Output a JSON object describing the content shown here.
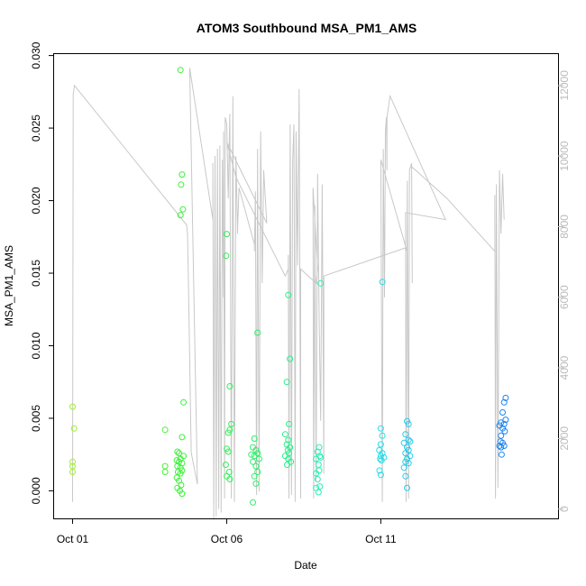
{
  "chart_data": {
    "type": "scatter",
    "title": "ATOM3 Southbound MSA_PM1_AMS",
    "xlabel": "Date",
    "ylabel": "MSA_PM1_AMS",
    "xlim": [
      -0.6,
      15.75
    ],
    "ylim": [
      -0.0019,
      0.0301
    ],
    "y2lim": [
      -265,
      12890
    ],
    "xticks": [
      {
        "value": 0,
        "label": "Oct 01"
      },
      {
        "value": 5,
        "label": "Oct 06"
      },
      {
        "value": 10,
        "label": "Oct 11"
      }
    ],
    "yticks": [
      {
        "value": 0.0,
        "label": "0.000"
      },
      {
        "value": 0.005,
        "label": "0.005"
      },
      {
        "value": 0.01,
        "label": "0.010"
      },
      {
        "value": 0.015,
        "label": "0.015"
      },
      {
        "value": 0.02,
        "label": "0.020"
      },
      {
        "value": 0.025,
        "label": "0.025"
      },
      {
        "value": 0.03,
        "label": "0.030"
      }
    ],
    "y2ticks": [
      {
        "value": 0,
        "label": "0"
      },
      {
        "value": 2000,
        "label": "2000"
      },
      {
        "value": 4000,
        "label": "4000"
      },
      {
        "value": 6000,
        "label": "6000"
      },
      {
        "value": 8000,
        "label": "8000"
      },
      {
        "value": 10000,
        "label": "10000"
      },
      {
        "value": 12000,
        "label": "12000"
      }
    ],
    "secondary_line": {
      "name": "altitude",
      "color": "#c8c8c8",
      "points": [
        [
          0.0,
          200
        ],
        [
          0.02,
          11750
        ],
        [
          0.06,
          12000
        ],
        [
          3.7,
          8050
        ],
        [
          3.73,
          7800
        ],
        [
          3.75,
          6900
        ],
        [
          3.85,
          1600
        ],
        [
          4.05,
          700
        ],
        [
          3.8,
          12500
        ],
        [
          4.55,
          8200
        ],
        [
          4.55,
          9800
        ],
        [
          4.58,
          -300
        ],
        [
          4.62,
          10000
        ],
        [
          4.66,
          -200
        ],
        [
          4.7,
          10200
        ],
        [
          4.74,
          0
        ],
        [
          4.78,
          10300
        ],
        [
          4.82,
          -100
        ],
        [
          4.86,
          9900
        ],
        [
          4.9,
          6000
        ],
        [
          4.9,
          10700
        ],
        [
          4.93,
          300
        ],
        [
          4.95,
          11100
        ],
        [
          5.0,
          10900
        ],
        [
          5.05,
          8800
        ],
        [
          5.1,
          11200
        ],
        [
          5.15,
          300
        ],
        [
          5.2,
          11700
        ],
        [
          5.25,
          200
        ],
        [
          5.3,
          10000
        ],
        [
          5.35,
          8000
        ],
        [
          5.35,
          7800
        ],
        [
          5.4,
          9100
        ],
        [
          5.9,
          7500
        ],
        [
          5.9,
          7300
        ],
        [
          5.93,
          9000
        ],
        [
          5.97,
          400
        ],
        [
          6.0,
          10200
        ],
        [
          6.05,
          500
        ],
        [
          6.1,
          10700
        ],
        [
          6.15,
          6400
        ],
        [
          6.2,
          9600
        ],
        [
          6.3,
          8100
        ],
        [
          5.0,
          10400
        ],
        [
          5.3,
          9400
        ],
        [
          6.9,
          6600
        ],
        [
          7.0,
          6800
        ],
        [
          7.0,
          7200
        ],
        [
          7.02,
          300
        ],
        [
          7.06,
          10900
        ],
        [
          7.1,
          400
        ],
        [
          7.14,
          9800
        ],
        [
          7.18,
          10900
        ],
        [
          7.22,
          200
        ],
        [
          7.25,
          10700
        ],
        [
          7.3,
          6900
        ],
        [
          7.35,
          11900
        ],
        [
          7.4,
          300
        ],
        [
          7.4,
          6800
        ],
        [
          7.9,
          6400
        ],
        [
          7.95,
          6800
        ],
        [
          7.8,
          9100
        ],
        [
          7.82,
          300
        ],
        [
          7.86,
          8600
        ],
        [
          7.9,
          800
        ],
        [
          7.95,
          9500
        ],
        [
          8.0,
          5400
        ],
        [
          8.05,
          2500
        ],
        [
          8.1,
          9200
        ],
        [
          8.15,
          1000
        ],
        [
          8.15,
          6600
        ],
        [
          10.8,
          7400
        ],
        [
          10.85,
          7300
        ],
        [
          10.0,
          9900
        ],
        [
          10.05,
          200
        ],
        [
          10.08,
          10200
        ],
        [
          10.12,
          6000
        ],
        [
          10.15,
          10700
        ],
        [
          10.18,
          11100
        ],
        [
          10.2,
          9600
        ],
        [
          10.2,
          11100
        ],
        [
          10.3,
          11700
        ],
        [
          12.1,
          8200
        ],
        [
          10.8,
          8400
        ],
        [
          10.82,
          200
        ],
        [
          10.86,
          9300
        ],
        [
          10.9,
          300
        ],
        [
          10.93,
          9600
        ],
        [
          11.0,
          9800
        ],
        [
          11.02,
          6400
        ],
        [
          11.0,
          9700
        ],
        [
          12.15,
          8800
        ],
        [
          13.7,
          7300
        ],
        [
          13.7,
          8900
        ],
        [
          13.72,
          300
        ],
        [
          13.75,
          9200
        ],
        [
          13.8,
          600
        ],
        [
          13.85,
          9600
        ],
        [
          13.9,
          7800
        ],
        [
          13.95,
          9500
        ],
        [
          14.0,
          8200
        ]
      ]
    },
    "series": [
      {
        "name": "MSA_PM1_AMS",
        "points": [
          [
            0.0,
            0.0058
          ],
          [
            0.05,
            0.0043
          ],
          [
            0.0,
            0.002
          ],
          [
            0.0,
            0.0017
          ],
          [
            0.0,
            0.0013
          ],
          [
            3.0,
            0.0042
          ],
          [
            3.0,
            0.0017
          ],
          [
            3.0,
            0.0013
          ],
          [
            3.5,
            0.029
          ],
          [
            3.55,
            0.0218
          ],
          [
            3.52,
            0.0211
          ],
          [
            3.58,
            0.0194
          ],
          [
            3.5,
            0.019
          ],
          [
            3.6,
            0.0061
          ],
          [
            3.55,
            0.0037
          ],
          [
            3.4,
            0.0027
          ],
          [
            3.45,
            0.0026
          ],
          [
            3.5,
            0.0022
          ],
          [
            3.6,
            0.0024
          ],
          [
            3.38,
            0.0021
          ],
          [
            3.45,
            0.002
          ],
          [
            3.55,
            0.0019
          ],
          [
            3.4,
            0.0017
          ],
          [
            3.5,
            0.0016
          ],
          [
            3.55,
            0.0014
          ],
          [
            3.42,
            0.0013
          ],
          [
            3.5,
            0.0012
          ],
          [
            3.38,
            0.0009
          ],
          [
            3.45,
            0.0007
          ],
          [
            3.52,
            0.0004
          ],
          [
            3.4,
            0.0002
          ],
          [
            3.48,
            0.0
          ],
          [
            3.55,
            -0.0002
          ],
          [
            5.0,
            0.0177
          ],
          [
            4.98,
            0.0162
          ],
          [
            5.1,
            0.0072
          ],
          [
            5.15,
            0.0046
          ],
          [
            5.1,
            0.0042
          ],
          [
            5.05,
            0.004
          ],
          [
            5.0,
            0.0029
          ],
          [
            5.05,
            0.0027
          ],
          [
            4.97,
            0.0018
          ],
          [
            5.08,
            0.0013
          ],
          [
            5.0,
            0.001
          ],
          [
            5.1,
            0.0008
          ],
          [
            6.0,
            0.0109
          ],
          [
            5.9,
            0.0036
          ],
          [
            5.85,
            0.003
          ],
          [
            5.95,
            0.0028
          ],
          [
            6.0,
            0.0026
          ],
          [
            5.8,
            0.0025
          ],
          [
            5.9,
            0.0024
          ],
          [
            6.05,
            0.0022
          ],
          [
            5.85,
            0.002
          ],
          [
            5.95,
            0.0017
          ],
          [
            6.0,
            0.0013
          ],
          [
            5.9,
            0.001
          ],
          [
            5.95,
            0.0005
          ],
          [
            5.85,
            -0.0008
          ],
          [
            7.0,
            0.0135
          ],
          [
            7.05,
            0.0091
          ],
          [
            6.95,
            0.0075
          ],
          [
            7.02,
            0.0046
          ],
          [
            6.9,
            0.0039
          ],
          [
            7.0,
            0.0035
          ],
          [
            6.95,
            0.0032
          ],
          [
            7.05,
            0.003
          ],
          [
            6.98,
            0.0028
          ],
          [
            7.02,
            0.0026
          ],
          [
            6.9,
            0.0024
          ],
          [
            7.0,
            0.0022
          ],
          [
            7.08,
            0.002
          ],
          [
            6.96,
            0.0018
          ],
          [
            8.05,
            0.0143
          ],
          [
            8.0,
            0.003
          ],
          [
            7.95,
            0.0027
          ],
          [
            8.02,
            0.0024
          ],
          [
            8.05,
            0.0023
          ],
          [
            7.9,
            0.0022
          ],
          [
            7.98,
            0.0018
          ],
          [
            8.0,
            0.0014
          ],
          [
            7.9,
            0.0012
          ],
          [
            7.95,
            0.0008
          ],
          [
            8.02,
            0.0003
          ],
          [
            7.9,
            0.0002
          ],
          [
            7.98,
            -0.0001
          ],
          [
            10.05,
            0.0144
          ],
          [
            10.0,
            0.0043
          ],
          [
            10.05,
            0.0038
          ],
          [
            10.0,
            0.0032
          ],
          [
            9.95,
            0.0028
          ],
          [
            10.05,
            0.0026
          ],
          [
            10.0,
            0.0024
          ],
          [
            10.1,
            0.0023
          ],
          [
            9.98,
            0.0022
          ],
          [
            10.02,
            0.0021
          ],
          [
            9.96,
            0.0014
          ],
          [
            10.0,
            0.0011
          ],
          [
            10.85,
            0.0048
          ],
          [
            10.9,
            0.0046
          ],
          [
            10.8,
            0.0039
          ],
          [
            10.9,
            0.0035
          ],
          [
            10.95,
            0.0034
          ],
          [
            10.75,
            0.0033
          ],
          [
            10.85,
            0.003
          ],
          [
            10.9,
            0.0028
          ],
          [
            10.8,
            0.0026
          ],
          [
            10.95,
            0.0024
          ],
          [
            10.85,
            0.0022
          ],
          [
            10.8,
            0.002
          ],
          [
            10.9,
            0.0019
          ],
          [
            10.75,
            0.0016
          ],
          [
            10.8,
            0.001
          ],
          [
            10.85,
            0.0002
          ],
          [
            14.05,
            0.0064
          ],
          [
            14.0,
            0.0061
          ],
          [
            13.95,
            0.0054
          ],
          [
            14.05,
            0.0049
          ],
          [
            13.9,
            0.0047
          ],
          [
            14.0,
            0.0046
          ],
          [
            13.85,
            0.0045
          ],
          [
            13.95,
            0.0043
          ],
          [
            14.02,
            0.0041
          ],
          [
            13.9,
            0.0038
          ],
          [
            13.88,
            0.0034
          ],
          [
            13.95,
            0.0033
          ],
          [
            14.0,
            0.0031
          ],
          [
            13.85,
            0.0031
          ],
          [
            13.9,
            0.003
          ],
          [
            13.92,
            0.0025
          ]
        ]
      }
    ]
  }
}
